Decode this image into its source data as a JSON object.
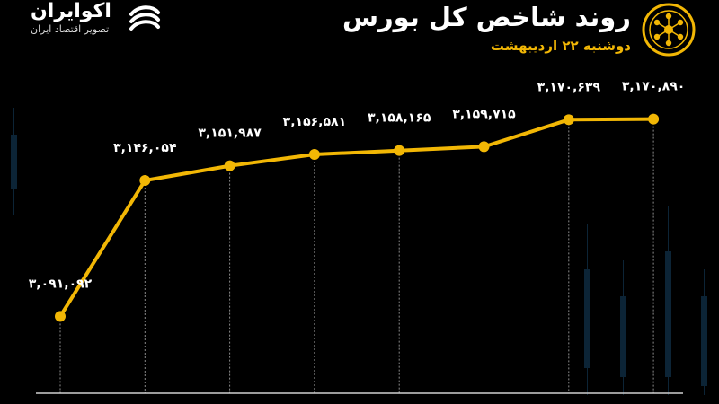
{
  "header": {
    "title": "روند شاخص کل بورس",
    "subtitle": "دوشنبه ۲۲ اردیبهشت"
  },
  "brand": {
    "name": "اکوایران",
    "tagline": "تصویر اقتصاد ایران",
    "logo_icon": "ekoiran-swirl-logo",
    "seal_icon": "tehran-stock-exchange-seal"
  },
  "colors": {
    "background": "#000000",
    "line": "#f2b705",
    "accent_text": "#f2b705",
    "text": "#ffffff"
  },
  "chart_data": {
    "type": "line",
    "title": "روند شاخص کل بورس",
    "subtitle": "دوشنبه ۲۲ اردیبهشت",
    "values": [
      3091092,
      3146054,
      3151987,
      3156581,
      3158165,
      3159715,
      3170639,
      3170890
    ],
    "data_labels": [
      "۳,۰۹۱,۰۹۲",
      "۳,۱۴۶,۰۵۴",
      "۳,۱۵۱,۹۸۷",
      "۳,۱۵۶,۵۸۱",
      "۳,۱۵۸,۱۶۵",
      "۳,۱۵۹,۷۱۵",
      "۳,۱۷۰,۶۳۹",
      "۳,۱۷۰,۸۹۰"
    ],
    "ylim": [
      3060000,
      3190000
    ],
    "grid": "vertical-dashed",
    "legend": "none"
  }
}
